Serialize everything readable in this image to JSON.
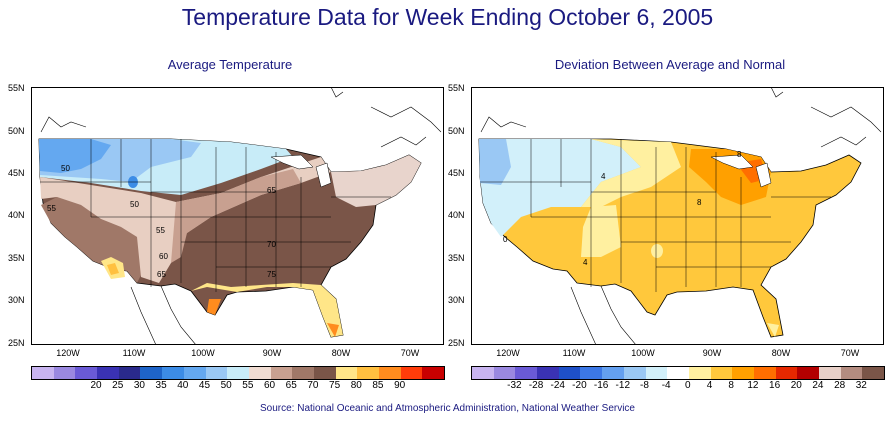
{
  "title": "Temperature Data for Week Ending October 6, 2005",
  "left_map": {
    "subtitle": "Average Temperature",
    "lat_labels": [
      "55N",
      "50N",
      "45N",
      "40N",
      "35N",
      "30N",
      "25N"
    ],
    "lon_labels": [
      "120W",
      "110W",
      "100W",
      "90W",
      "80W",
      "70W"
    ],
    "contour_labels": [
      "50",
      "50",
      "55",
      "55",
      "60",
      "65",
      "65",
      "70",
      "75"
    ],
    "legend": {
      "colors": [
        "#c8b4f0",
        "#9a88e0",
        "#6a5ad6",
        "#3a32b4",
        "#2a2a8c",
        "#1e64c8",
        "#3c8ce6",
        "#64a8f0",
        "#9ac8f4",
        "#c8ecf8",
        "#f0dcd2",
        "#c8a090",
        "#a07868",
        "#7a5548",
        "#ffe688",
        "#ffc040",
        "#ff8c1e",
        "#ff3c0a",
        "#c80000"
      ],
      "labels": [
        "20",
        "25",
        "30",
        "35",
        "40",
        "45",
        "50",
        "55",
        "60",
        "65",
        "70",
        "75",
        "80",
        "85",
        "90"
      ]
    }
  },
  "right_map": {
    "subtitle": "Deviation Between Average and Normal",
    "lat_labels": [
      "55N",
      "50N",
      "45N",
      "40N",
      "35N",
      "30N",
      "25N"
    ],
    "lon_labels": [
      "120W",
      "110W",
      "100W",
      "90W",
      "80W",
      "70W"
    ],
    "contour_labels": [
      "0",
      "4",
      "4",
      "8",
      "8"
    ],
    "legend": {
      "colors": [
        "#c8b4f0",
        "#9a88e0",
        "#6a5ad6",
        "#3a32b4",
        "#1e50c8",
        "#3c78e6",
        "#64a0f0",
        "#9ac8f4",
        "#d2f0fa",
        "#ffffff",
        "#fff0a0",
        "#ffc83c",
        "#ffa000",
        "#ff6e00",
        "#e62800",
        "#b40000",
        "#e8d0c8",
        "#b48c80",
        "#7a5548"
      ],
      "labels": [
        "-32",
        "-28",
        "-24",
        "-20",
        "-16",
        "-12",
        "-8",
        "-4",
        "0",
        "4",
        "8",
        "12",
        "16",
        "20",
        "24",
        "28",
        "32"
      ]
    }
  },
  "source": "Source:  National Oceanic and Atmospheric Administration, National Weather Service"
}
